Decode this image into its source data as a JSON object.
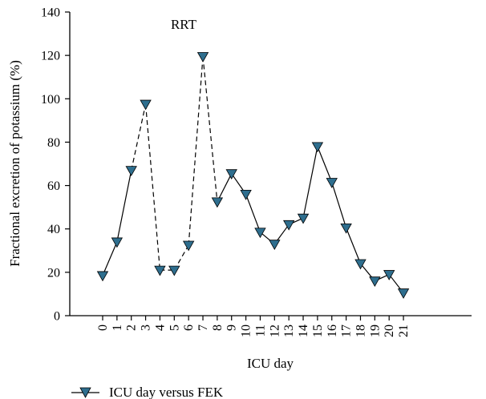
{
  "chart_data": {
    "type": "line",
    "title": "",
    "xlabel": "ICU day",
    "ylabel": "Fractional excretion of potassium (%)",
    "ylim": [
      0,
      140
    ],
    "yticks": [
      0,
      20,
      40,
      60,
      80,
      100,
      120,
      140
    ],
    "categories": [
      "0",
      "1",
      "2",
      "3",
      "4",
      "5",
      "6",
      "7",
      "8",
      "9",
      "10",
      "11",
      "12",
      "13",
      "14",
      "15",
      "16",
      "17",
      "18",
      "19",
      "20",
      "21"
    ],
    "series": [
      {
        "name": "ICU day versus FEK",
        "values": [
          18.5,
          34,
          67,
          97.5,
          21,
          21,
          32.5,
          119.5,
          52.5,
          65.5,
          56,
          38.5,
          33,
          42,
          45,
          78,
          61.5,
          40.5,
          24,
          16,
          19,
          10.5
        ],
        "color": "#2e6e8e",
        "marker": "triangle-down"
      }
    ],
    "dashed_segments": [
      [
        2,
        3
      ],
      [
        3,
        4
      ],
      [
        4,
        5
      ],
      [
        5,
        6
      ],
      [
        6,
        7
      ],
      [
        7,
        8
      ]
    ],
    "annotations": [
      {
        "text": "RRT"
      }
    ],
    "legend": {
      "position": "bottom-left",
      "label": "ICU day versus FEK"
    },
    "grid": false
  }
}
